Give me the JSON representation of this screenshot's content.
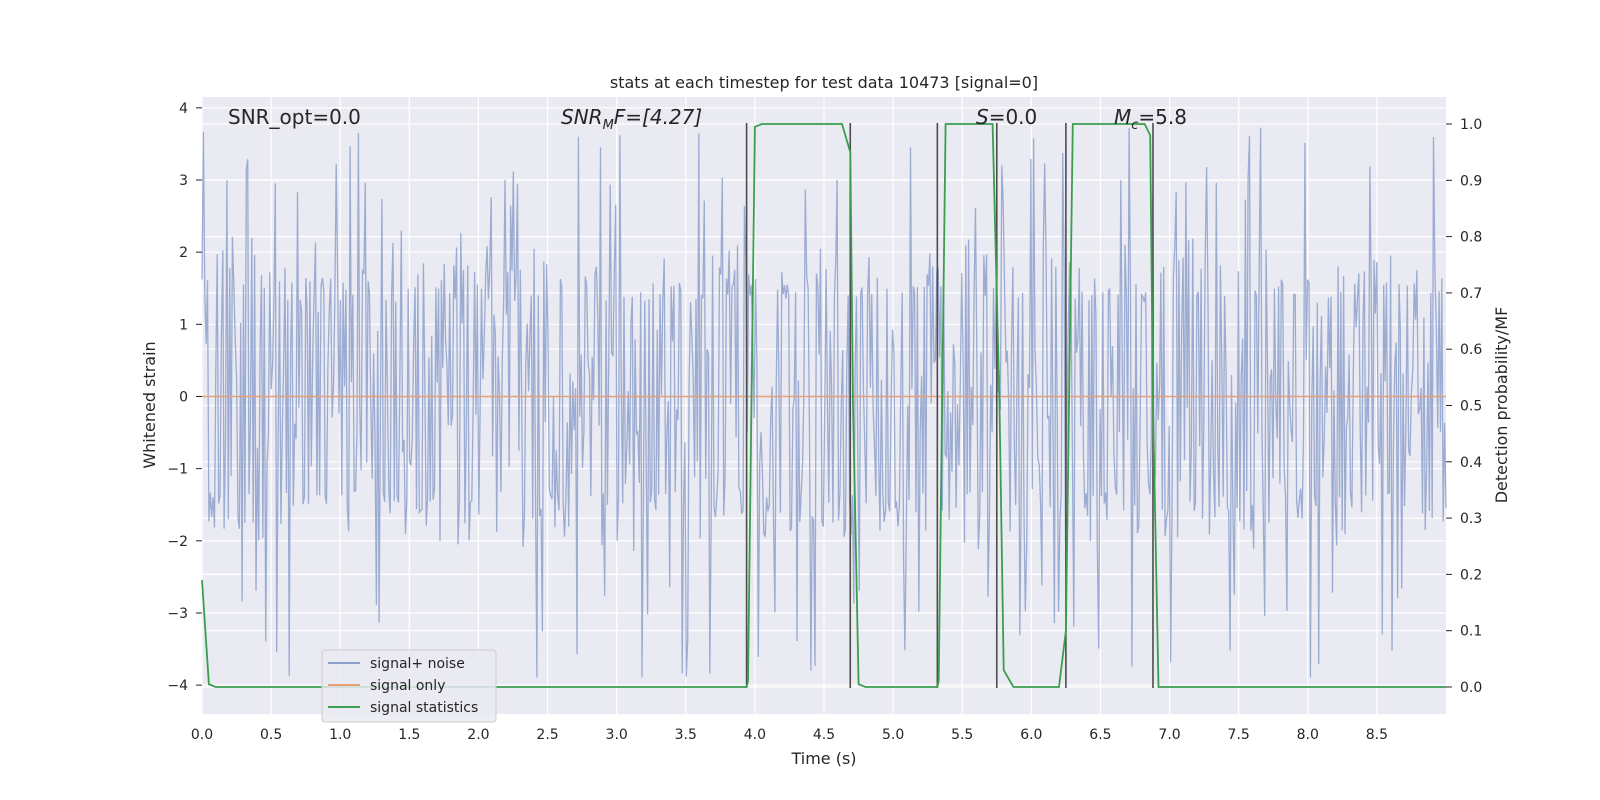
{
  "chart_data": {
    "type": "line",
    "title": "stats at each timestep for test data 10473 [signal=0]",
    "xlabel": "Time (s)",
    "ylabel": "Whitened strain",
    "ylabel_right": "Detection probability/MF",
    "xlim": [
      0.0,
      9.0
    ],
    "ylim": [
      -4.4,
      4.15
    ],
    "ylim_right": [
      -0.048,
      1.048
    ],
    "x_ticks": [
      "0.0",
      "0.5",
      "1.0",
      "1.5",
      "2.0",
      "2.5",
      "3.0",
      "3.5",
      "4.0",
      "4.5",
      "5.0",
      "5.5",
      "6.0",
      "6.5",
      "7.0",
      "7.5",
      "8.0",
      "8.5"
    ],
    "y_ticks": [
      4,
      3,
      2,
      1,
      0,
      -1,
      -2,
      -3,
      -4
    ],
    "y_ticks_right": [
      "1.0",
      "0.9",
      "0.8",
      "0.7",
      "0.6",
      "0.5",
      "0.4",
      "0.3",
      "0.2",
      "0.1",
      "0.0"
    ],
    "grid": true,
    "legend_position": "lower-left",
    "annotations": {
      "snr_opt": "SNR_opt=0.0",
      "snr_mf_base": "SNR",
      "snr_mf_sub": "M",
      "snr_mf_rest": "F=[4.27]",
      "s_label": "S",
      "s_value": "=0.0",
      "mc_base": "M",
      "mc_sub": "c",
      "mc_value": "=5.8"
    },
    "series": [
      {
        "name": "signal+ noise",
        "color": "#8da0cb",
        "kind": "noise",
        "samples": 900,
        "typical_range": [
          -2.6,
          2.6
        ],
        "extreme_range": [
          -3.9,
          3.8
        ]
      },
      {
        "name": "signal only",
        "color": "#e5a07a",
        "x": [
          0.0,
          9.0
        ],
        "y": [
          0.0,
          0.0
        ]
      },
      {
        "name": "signal statistics",
        "color": "#3a9e4f",
        "axis": "right",
        "x": [
          0.0,
          0.05,
          0.1,
          3.94,
          3.95,
          4.0,
          4.05,
          4.63,
          4.69,
          4.71,
          4.75,
          4.8,
          5.32,
          5.33,
          5.38,
          5.43,
          5.72,
          5.77,
          5.8,
          5.87,
          6.2,
          6.25,
          6.3,
          6.35,
          6.82,
          6.86,
          6.88,
          6.92,
          7.0,
          9.0
        ],
        "y": [
          0.19,
          0.005,
          0.0,
          0.0,
          0.01,
          0.995,
          1.0,
          1.0,
          0.95,
          0.5,
          0.005,
          0.0,
          0.0,
          0.01,
          1.0,
          1.0,
          1.0,
          0.5,
          0.03,
          0.0,
          0.0,
          0.1,
          1.0,
          1.0,
          1.0,
          0.98,
          0.5,
          0.0,
          0.0,
          0.0
        ]
      }
    ],
    "vertical_markers_x": [
      3.94,
      4.69,
      5.32,
      5.75,
      6.25,
      6.88
    ]
  },
  "colors": {
    "axes_bg": "#eaeaf2",
    "grid": "#ffffff",
    "marker": "#4d4d4d"
  }
}
